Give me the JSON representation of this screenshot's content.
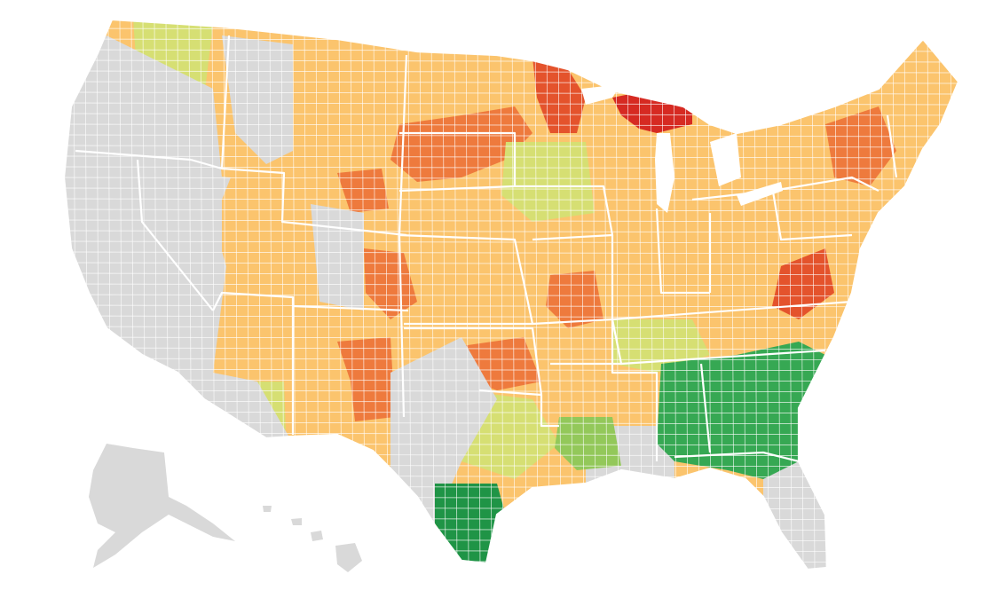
{
  "map": {
    "palette": {
      "no_data": "#d9d9d9",
      "light_orange": "#fbc46d",
      "orange": "#f7a45a",
      "dark_orange": "#ee7a3d",
      "red_orange": "#e4532c",
      "red": "#d62a22",
      "yellow_green": "#d6df73",
      "light_green": "#93c85a",
      "green": "#36a853",
      "dark_green": "#1f9446",
      "border": "#ffffff"
    },
    "regions": [
      "alaska",
      "hawaii",
      "contiguous-us"
    ]
  }
}
